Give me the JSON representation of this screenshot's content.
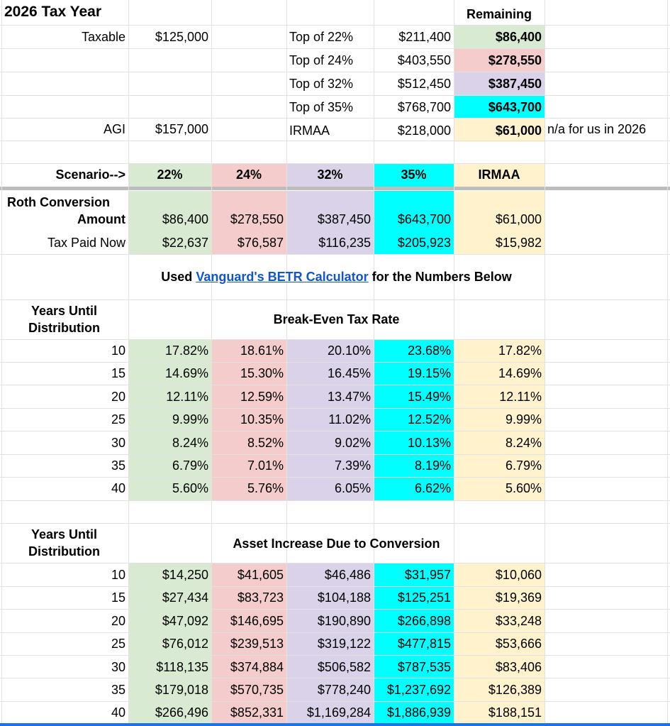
{
  "header": {
    "title": "2026 Tax Year",
    "remaining_label": "Remaining",
    "taxable_label": "Taxable",
    "taxable_value": "$125,000",
    "agi_label": "AGI",
    "agi_value": "$157,000",
    "note": "n/a for us in 2026"
  },
  "brackets": [
    {
      "label": "Top of 22%",
      "value": "$211,400",
      "remaining": "$86,400"
    },
    {
      "label": "Top of 24%",
      "value": "$403,550",
      "remaining": "$278,550"
    },
    {
      "label": "Top of 32%",
      "value": "$512,450",
      "remaining": "$387,450"
    },
    {
      "label": "Top of 35%",
      "value": "$768,700",
      "remaining": "$643,700"
    },
    {
      "label": "IRMAA",
      "value": "$218,000",
      "remaining": "$61,000"
    }
  ],
  "scenario": {
    "label": "Scenario-->",
    "columns": [
      "22%",
      "24%",
      "32%",
      "35%",
      "IRMAA"
    ]
  },
  "roth": {
    "label_line1": "Roth Conversion",
    "label_line2": "Amount",
    "amounts": [
      "$86,400",
      "$278,550",
      "$387,450",
      "$643,700",
      "$61,000"
    ],
    "tax_label": "Tax Paid Now",
    "tax": [
      "$22,637",
      "$76,587",
      "$116,235",
      "$205,923",
      "$15,982"
    ]
  },
  "betr_note": {
    "prefix": "Used ",
    "link": "Vanguard's BETR Calculator",
    "suffix": " for the Numbers Below"
  },
  "breakeven": {
    "years_label_line1": "Years Until",
    "years_label_line2": "Distribution",
    "title": "Break-Even Tax Rate",
    "rows": [
      {
        "years": "10",
        "values": [
          "17.82%",
          "18.61%",
          "20.10%",
          "23.68%",
          "17.82%"
        ]
      },
      {
        "years": "15",
        "values": [
          "14.69%",
          "15.30%",
          "16.45%",
          "19.15%",
          "14.69%"
        ]
      },
      {
        "years": "20",
        "values": [
          "12.11%",
          "12.59%",
          "13.47%",
          "15.49%",
          "12.11%"
        ]
      },
      {
        "years": "25",
        "values": [
          "9.99%",
          "10.35%",
          "11.02%",
          "12.52%",
          "9.99%"
        ]
      },
      {
        "years": "30",
        "values": [
          "8.24%",
          "8.52%",
          "9.02%",
          "10.13%",
          "8.24%"
        ]
      },
      {
        "years": "35",
        "values": [
          "6.79%",
          "7.01%",
          "7.39%",
          "8.19%",
          "6.79%"
        ]
      },
      {
        "years": "40",
        "values": [
          "5.60%",
          "5.76%",
          "6.05%",
          "6.62%",
          "5.60%"
        ]
      }
    ]
  },
  "asset": {
    "years_label_line1": "Years Until",
    "years_label_line2": "Distribution",
    "title": "Asset Increase Due to Conversion",
    "rows": [
      {
        "years": "10",
        "values": [
          "$14,250",
          "$41,605",
          "$46,486",
          "$31,957",
          "$10,060"
        ]
      },
      {
        "years": "15",
        "values": [
          "$27,434",
          "$83,723",
          "$104,188",
          "$125,251",
          "$19,369"
        ]
      },
      {
        "years": "20",
        "values": [
          "$47,092",
          "$146,695",
          "$190,890",
          "$266,898",
          "$33,248"
        ]
      },
      {
        "years": "25",
        "values": [
          "$76,012",
          "$239,513",
          "$319,122",
          "$477,815",
          "$53,666"
        ]
      },
      {
        "years": "30",
        "values": [
          "$118,135",
          "$374,884",
          "$506,582",
          "$787,535",
          "$83,406"
        ]
      },
      {
        "years": "35",
        "values": [
          "$179,018",
          "$570,735",
          "$778,240",
          "$1,237,692",
          "$126,389"
        ]
      },
      {
        "years": "40",
        "values": [
          "$266,496",
          "$852,331",
          "$1,169,284",
          "$1,886,939",
          "$188,151"
        ]
      }
    ]
  },
  "colors": {
    "green": "#d9ead3",
    "pink": "#f4cccc",
    "lavender": "#d9d2e9",
    "cyan": "#00ffff",
    "yellow": "#fff2cc",
    "link": "#1155cc"
  }
}
